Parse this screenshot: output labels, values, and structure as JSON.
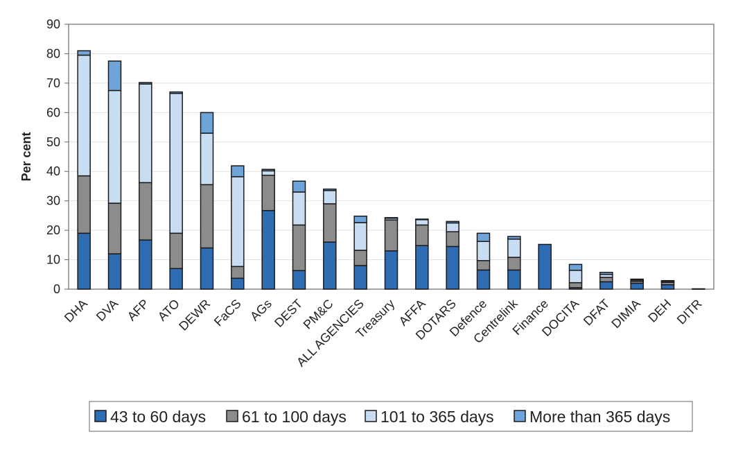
{
  "chart_data": {
    "type": "bar",
    "stacked": true,
    "ylabel": "Per cent",
    "ylim": [
      0,
      90
    ],
    "yticks": [
      0,
      10,
      20,
      30,
      40,
      50,
      60,
      70,
      80,
      90
    ],
    "grid": true,
    "legend_position": "bottom",
    "categories": [
      "DHA",
      "DVA",
      "AFP",
      "ATO",
      "DEWR",
      "FaCS",
      "AGs",
      "DEST",
      "PM&C",
      "ALL AGENCIES",
      "Treasury",
      "AFFA",
      "DOTARS",
      "Defence",
      "Centrelink",
      "Finance",
      "DOCITA",
      "DFAT",
      "DIMIA",
      "DEH",
      "DITR"
    ],
    "series": [
      {
        "name": "43 to 60 days",
        "color": "#2e6db4",
        "values": [
          19,
          12,
          16.7,
          7,
          14,
          3.7,
          26.7,
          6.3,
          16,
          8,
          13,
          14.8,
          14.5,
          6.5,
          6.5,
          15.2,
          0.5,
          2.5,
          2,
          1.5,
          0
        ]
      },
      {
        "name": "61 to 100 days",
        "color": "#8c8c8c",
        "values": [
          19.5,
          17.2,
          19.5,
          12,
          21.5,
          4,
          12,
          15.5,
          13,
          5.2,
          10.5,
          7,
          5,
          3.2,
          4.3,
          0,
          1.7,
          1.5,
          0.7,
          0.8,
          0
        ]
      },
      {
        "name": "101 to 365 days",
        "color": "#c8dcf2",
        "values": [
          41,
          38.3,
          33.5,
          47.5,
          17.5,
          30.5,
          1.5,
          11.2,
          4.5,
          9.4,
          0.6,
          1.8,
          3,
          6.5,
          6.2,
          0,
          4.2,
          1,
          0.4,
          0.4,
          0.1
        ]
      },
      {
        "name": "More than 365 days",
        "color": "#6fa4d8",
        "values": [
          1.5,
          10,
          0.5,
          0.5,
          7,
          3.7,
          0.5,
          3.7,
          0.5,
          2.2,
          0.2,
          0.2,
          0.5,
          2.8,
          0.9,
          0,
          2,
          0.7,
          0.3,
          0.2,
          0
        ]
      }
    ]
  }
}
